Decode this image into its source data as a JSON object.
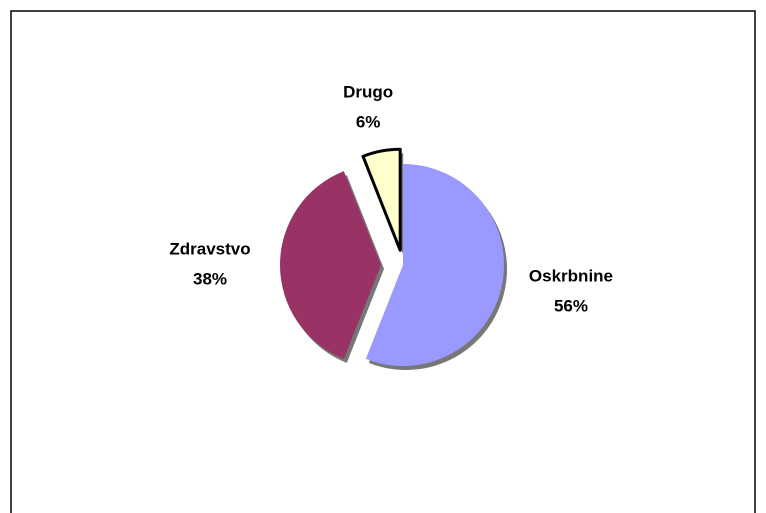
{
  "chart_data": {
    "type": "pie",
    "categories": [
      "Oskrbnine",
      "Zdravstvo",
      "Drugo"
    ],
    "values": [
      56,
      38,
      6
    ],
    "value_labels": [
      "56%",
      "38%",
      "6%"
    ],
    "colors": [
      "#9999ff",
      "#993366",
      "#ffffcc"
    ]
  }
}
